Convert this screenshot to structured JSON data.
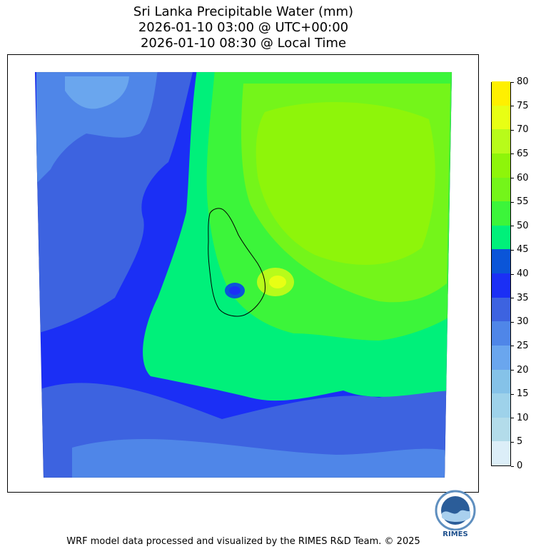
{
  "title": {
    "line1": "Sri Lanka Precipitable Water (mm)",
    "line2": "2026-01-10 03:00 @ UTC+00:00",
    "line3": "2026-01-10 08:30 @ Local Time"
  },
  "colorbar": {
    "ticks": [
      "0",
      "5",
      "10",
      "15",
      "20",
      "25",
      "30",
      "35",
      "40",
      "45",
      "50",
      "55",
      "60",
      "65",
      "70",
      "75",
      "80"
    ],
    "colors": [
      "#dceef8",
      "#b3dcea",
      "#9ed2ea",
      "#85c2e8",
      "#6aa6ee",
      "#4f86e8",
      "#3d63e0",
      "#1b2ff5",
      "#0a55d8",
      "#00f07a",
      "#3cf53a",
      "#74f51a",
      "#8ef50a",
      "#b8fb1a",
      "#e8ff14",
      "#fff000",
      "#ffcc00"
    ]
  },
  "logo": {
    "text": "RIMES"
  },
  "footer": "WRF model data processed and visualized by the RIMES R&D Team. © 2025"
}
